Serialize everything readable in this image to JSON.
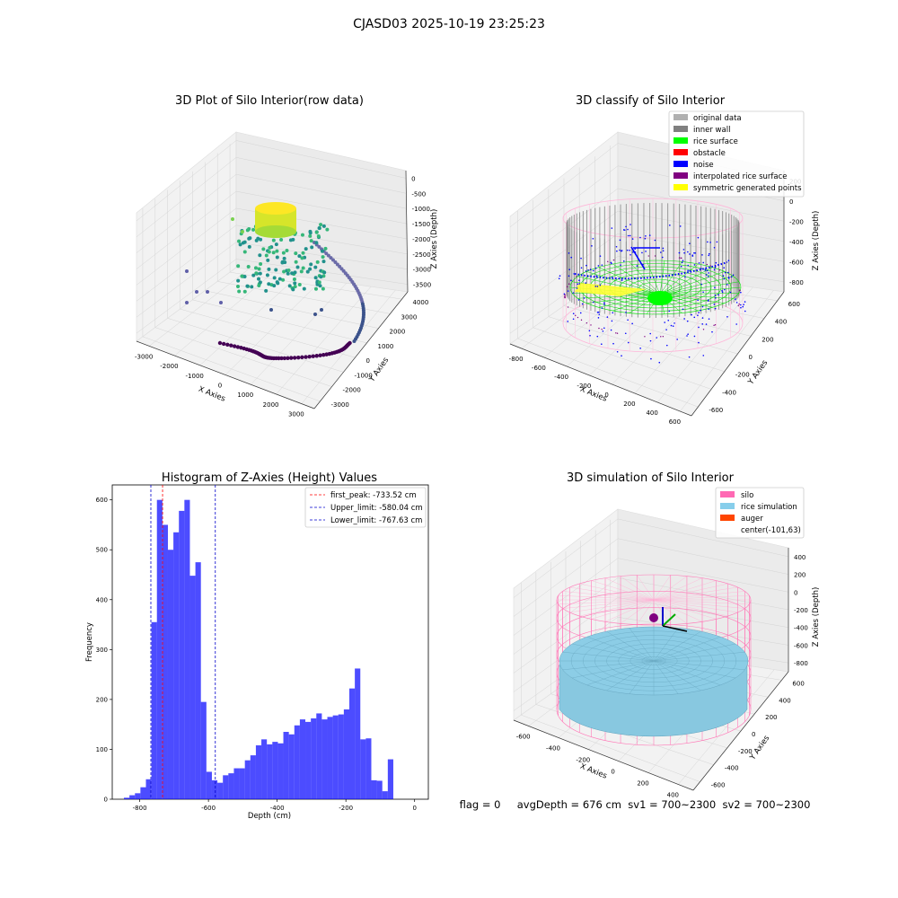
{
  "suptitle": "CJASD03 2025-10-19 23:25:23",
  "footer": "flag = 0     avgDepth = 676 cm  sv1 = 700~2300  sv2 = 700~2300",
  "chart_data": [
    {
      "type": "scatter",
      "title": "3D Plot of Silo Interior(row data)",
      "xlabel": "X Axies",
      "ylabel": "Y Axies",
      "zlabel": "Z Axies (Depth)",
      "x_ticks": [
        "-3000",
        "-2000",
        "-1000",
        "0",
        "1000",
        "2000",
        "3000"
      ],
      "y_ticks": [
        "-3000",
        "-2000",
        "-1000",
        "0",
        "1000",
        "2000",
        "3000",
        "4000"
      ],
      "z_ticks": [
        "0",
        "-500",
        "-1000",
        "-1500",
        "-2000",
        "-2500",
        "-3000",
        "-3500"
      ]
    },
    {
      "type": "scatter",
      "title": "3D classify of Silo Interior",
      "xlabel": "X Axies",
      "ylabel": "Y Axies",
      "zlabel": "Z Axies (Depth)",
      "x_ticks": [
        "-800",
        "-600",
        "-400",
        "-200",
        "0",
        "200",
        "400",
        "600"
      ],
      "y_ticks": [
        "-600",
        "-400",
        "-200",
        "0",
        "200",
        "400",
        "600"
      ],
      "z_ticks": [
        "200",
        "0",
        "-200",
        "-400",
        "-600",
        "-800"
      ],
      "legend": [
        {
          "label": "original data",
          "color": "#b0b0b0"
        },
        {
          "label": "inner wall",
          "color": "#808080"
        },
        {
          "label": "rice surface",
          "color": "#00ff00"
        },
        {
          "label": "obstacle",
          "color": "#ff0000"
        },
        {
          "label": "noise",
          "color": "#0000ff"
        },
        {
          "label": "interpolated rice surface",
          "color": "#800080"
        },
        {
          "label": "symmetric generated points",
          "color": "#ffff00"
        }
      ]
    },
    {
      "type": "bar",
      "title": "Histogram of Z-Axies (Height) Values",
      "xlabel": "Depth (cm)",
      "ylabel": "Frequency",
      "xlim": [
        -880,
        40
      ],
      "ylim": [
        0,
        630
      ],
      "x_ticks": [
        -800,
        -600,
        -400,
        -200,
        0
      ],
      "y_ticks": [
        0,
        100,
        200,
        300,
        400,
        500,
        600
      ],
      "bin_width": 16,
      "bin_start": -846,
      "counts": [
        3,
        8,
        12,
        24,
        40,
        355,
        600,
        550,
        500,
        535,
        578,
        600,
        448,
        475,
        195,
        55,
        38,
        33,
        48,
        52,
        62,
        62,
        78,
        88,
        108,
        120,
        110,
        115,
        112,
        135,
        130,
        148,
        160,
        155,
        162,
        172,
        160,
        165,
        168,
        170,
        180,
        222,
        262,
        120,
        122,
        38,
        37,
        16,
        80
      ],
      "bar_color": "#0000ff",
      "bar_alpha": 0.7,
      "vlines": [
        {
          "label": "first_peak: -733.52 cm",
          "value": -733.52,
          "color": "#ff0000"
        },
        {
          "label": "Upper_limit: -580.04 cm",
          "value": -580.04,
          "color": "#0000cc"
        },
        {
          "label": "Lower_limit: -767.63 cm",
          "value": -767.63,
          "color": "#0000cc"
        }
      ],
      "legend_position": "top-right"
    },
    {
      "type": "scatter",
      "title": "3D simulation of Silo Interior",
      "xlabel": "X Axies",
      "ylabel": "Y Axies",
      "zlabel": "Z Axies (Depth)",
      "x_ticks": [
        "-600",
        "-400",
        "-200",
        "0",
        "200",
        "400"
      ],
      "y_ticks": [
        "-600",
        "-400",
        "-200",
        "0",
        "200",
        "400",
        "600"
      ],
      "z_ticks": [
        "400",
        "200",
        "0",
        "-200",
        "-400",
        "-600",
        "-800"
      ],
      "legend": [
        {
          "label": "silo",
          "color": "#ff69b4"
        },
        {
          "label": "rice simulation",
          "color": "#87ceeb"
        },
        {
          "label": "auger",
          "color": "#ff4500"
        },
        {
          "label": "center(-101,63)",
          "color": ""
        }
      ]
    }
  ]
}
